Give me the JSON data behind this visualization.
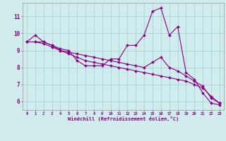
{
  "xlabel": "Windchill (Refroidissement éolien,°C)",
  "x": [
    0,
    1,
    2,
    3,
    4,
    5,
    6,
    7,
    8,
    9,
    10,
    11,
    12,
    13,
    14,
    15,
    16,
    17,
    18,
    19,
    20,
    21,
    22,
    23
  ],
  "series1": [
    9.5,
    9.9,
    9.5,
    9.3,
    9.1,
    9.0,
    8.4,
    8.1,
    8.1,
    8.1,
    8.5,
    8.5,
    9.3,
    9.3,
    9.9,
    11.3,
    11.5,
    9.9,
    10.4,
    7.7,
    7.3,
    6.5,
    5.9,
    5.8
  ],
  "series2": [
    9.5,
    9.5,
    9.5,
    9.3,
    9.0,
    8.9,
    8.8,
    8.7,
    8.6,
    8.5,
    8.4,
    8.3,
    8.2,
    8.1,
    8.0,
    8.3,
    8.6,
    8.0,
    7.8,
    7.5,
    7.2,
    6.9,
    6.2,
    5.9
  ],
  "series3": [
    9.5,
    9.5,
    9.4,
    9.2,
    9.0,
    8.8,
    8.6,
    8.4,
    8.3,
    8.2,
    8.1,
    8.0,
    7.9,
    7.8,
    7.7,
    7.6,
    7.5,
    7.4,
    7.3,
    7.2,
    7.0,
    6.8,
    6.3,
    5.9
  ],
  "line_color": "#880088",
  "bg_color": "#d0ecec",
  "grid_color": "#aad4d4",
  "text_color": "#800080",
  "ylim": [
    5.5,
    11.8
  ],
  "yticks": [
    6,
    7,
    8,
    9,
    10,
    11
  ],
  "marker": "D",
  "markersize": 2.0,
  "linewidth": 0.8
}
